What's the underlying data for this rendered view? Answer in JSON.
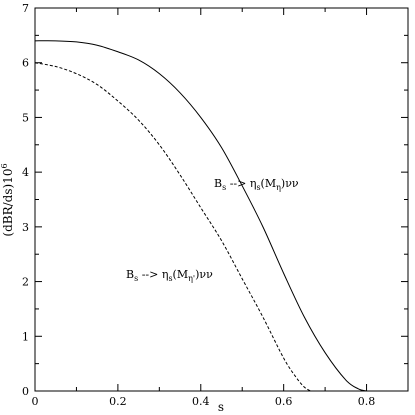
{
  "chart_data": {
    "type": "line",
    "xlabel": "s",
    "ylabel": "(dBR/ds)10",
    "ylabel_exponent": "6",
    "xlim": [
      0,
      0.9
    ],
    "ylim": [
      0,
      7
    ],
    "xticks": [
      0,
      0.2,
      0.4,
      0.6,
      0.8
    ],
    "xtick_labels": [
      "0",
      "0.2",
      "0.4",
      "0.6",
      "0.8"
    ],
    "yticks": [
      0,
      1,
      2,
      3,
      4,
      5,
      6,
      7
    ],
    "ytick_labels": [
      "0",
      "1",
      "2",
      "3",
      "4",
      "5",
      "6",
      "7"
    ],
    "grid": false,
    "series": [
      {
        "style": "solid",
        "x": [
          0,
          0.05,
          0.1,
          0.15,
          0.2,
          0.25,
          0.3,
          0.35,
          0.4,
          0.45,
          0.5,
          0.55,
          0.6,
          0.65,
          0.7,
          0.75,
          0.78,
          0.8
        ],
        "y": [
          6.4,
          6.4,
          6.38,
          6.32,
          6.2,
          6.05,
          5.8,
          5.45,
          5.0,
          4.45,
          3.75,
          3.0,
          2.15,
          1.35,
          0.7,
          0.2,
          0.04,
          0
        ]
      },
      {
        "style": "dashed",
        "x": [
          0,
          0.05,
          0.1,
          0.15,
          0.2,
          0.25,
          0.3,
          0.35,
          0.4,
          0.45,
          0.5,
          0.55,
          0.6,
          0.63,
          0.65,
          0.665
        ],
        "y": [
          6.0,
          5.93,
          5.8,
          5.6,
          5.3,
          4.95,
          4.5,
          3.95,
          3.35,
          2.75,
          2.05,
          1.35,
          0.6,
          0.25,
          0.07,
          0
        ]
      }
    ],
    "annotations": [
      {
        "parts": [
          "B",
          "s",
          " --> η",
          "s",
          "(M",
          "η",
          ")νν"
        ],
        "x": 0.45,
        "y": 4.75
      },
      {
        "parts": [
          "B",
          "s",
          " --> η",
          "s",
          "(M",
          "η'",
          ")νν"
        ],
        "x": 0.22,
        "y": 2.85
      }
    ]
  }
}
